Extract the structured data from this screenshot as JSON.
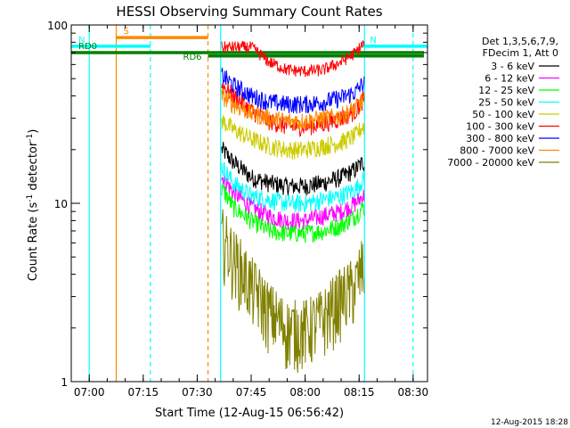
{
  "chart_data": {
    "type": "line",
    "title": "HESSI Observing Summary Count Rates",
    "xlabel": "Start Time (12-Aug-15 06:56:42)",
    "ylabel_main": "Count Rate (s",
    "ylabel_sup1": "-1",
    "ylabel_mid": " detector",
    "ylabel_sup2": "-1",
    "ylabel_end": ")",
    "timestamp": "12-Aug-2015 18:28",
    "x_unit": "minutes",
    "x_range": [
      415,
      514
    ],
    "y_scale": "log",
    "y_range": [
      1,
      100
    ],
    "x_ticks": [
      {
        "v": 420,
        "label": "07:00"
      },
      {
        "v": 435,
        "label": "07:15"
      },
      {
        "v": 450,
        "label": "07:30"
      },
      {
        "v": 465,
        "label": "07:45"
      },
      {
        "v": 480,
        "label": "08:00"
      },
      {
        "v": 495,
        "label": "08:15"
      },
      {
        "v": 510,
        "label": "08:30"
      }
    ],
    "x_minor_step": 5,
    "y_ticks": [
      {
        "v": 1,
        "label": "1"
      },
      {
        "v": 10,
        "label": "10"
      },
      {
        "v": 100,
        "label": "100"
      }
    ],
    "legend": {
      "header": [
        "Det 1,3,5,6,7,9,",
        "FDecim 1, Att 0"
      ],
      "placement": "right"
    },
    "series": [
      {
        "name": "3 - 6 keV",
        "color": "#000000"
      },
      {
        "name": "6 - 12 keV",
        "color": "#ff00ff"
      },
      {
        "name": "12 - 25 keV",
        "color": "#00ff00"
      },
      {
        "name": "25 - 50 keV",
        "color": "#00ffff"
      },
      {
        "name": "50 - 100 keV",
        "color": "#cccc00"
      },
      {
        "name": "100 - 300 keV",
        "color": "#ff0000"
      },
      {
        "name": "300 - 800 keV",
        "color": "#0000ff"
      },
      {
        "name": "800 - 7000 keV",
        "color": "#ff8800"
      },
      {
        "name": "7000 - 20000 keV",
        "color": "#808000"
      }
    ],
    "series_values": {
      "day_start": 456.5,
      "day_end": 496.5,
      "points": [
        {
          "series": "3 - 6 keV",
          "x": [
            457,
            460,
            465,
            470,
            475,
            480,
            485,
            490,
            494,
            496
          ],
          "y": [
            20,
            17,
            14,
            13,
            12.5,
            12.5,
            13,
            14,
            15.5,
            17
          ]
        },
        {
          "series": "6 - 12 keV",
          "x": [
            457,
            460,
            465,
            470,
            475,
            480,
            485,
            490,
            494,
            496
          ],
          "y": [
            14,
            11.5,
            9.5,
            8.5,
            8,
            8,
            8.5,
            9,
            10,
            11
          ]
        },
        {
          "series": "12 - 25 keV",
          "x": [
            457,
            460,
            465,
            470,
            475,
            480,
            485,
            490,
            494,
            496
          ],
          "y": [
            12,
            9.5,
            8,
            7,
            6.8,
            6.8,
            7,
            7.5,
            8.5,
            9.5
          ]
        },
        {
          "series": "25 - 50 keV",
          "x": [
            457,
            460,
            465,
            470,
            475,
            480,
            485,
            490,
            494,
            496
          ],
          "y": [
            16,
            13,
            11,
            10.5,
            10,
            10,
            10.5,
            11,
            12,
            13.5
          ]
        },
        {
          "series": "50 - 100 keV",
          "x": [
            457,
            460,
            465,
            470,
            475,
            480,
            485,
            490,
            494,
            496
          ],
          "y": [
            29,
            26,
            23,
            21,
            20,
            20,
            21,
            22,
            24,
            27
          ]
        },
        {
          "series": "100 - 300 keV",
          "x": [
            457,
            460,
            465,
            470,
            475,
            480,
            485,
            490,
            494,
            496
          ],
          "y": [
            46,
            40,
            33,
            29,
            27,
            27,
            28,
            30,
            33,
            38
          ]
        },
        {
          "series": "300 - 800 keV",
          "x": [
            457,
            460,
            465,
            470,
            475,
            480,
            485,
            490,
            494,
            496
          ],
          "y": [
            52,
            46,
            40,
            37,
            36,
            36,
            37,
            39,
            42,
            47
          ]
        },
        {
          "series": "800 - 7000 keV",
          "x": [
            457,
            460,
            465,
            470,
            475,
            480,
            485,
            490,
            494,
            496
          ],
          "y": [
            40,
            36,
            32,
            30,
            29,
            29,
            30,
            31,
            34,
            38
          ]
        },
        {
          "series": "7000 - 20000 keV",
          "x": [
            457,
            460,
            465,
            470,
            475,
            480,
            485,
            490,
            494,
            496
          ],
          "y": [
            6.5,
            5,
            3.5,
            2.5,
            2,
            2,
            2.3,
            3,
            3.5,
            4.5
          ]
        }
      ],
      "saa_red": {
        "x": [
          465,
          470,
          475,
          480,
          485,
          490,
          494,
          496
        ],
        "y": [
          75,
          62,
          56,
          55,
          56,
          62,
          70,
          78
        ]
      }
    },
    "annotations": [
      {
        "label": "S",
        "color": "#ff8800",
        "x_start": 427.5,
        "x_end": 453,
        "y": 85
      },
      {
        "label": "N",
        "color": "#00ffff",
        "x_start": 415,
        "x_end": 437,
        "y": 76
      },
      {
        "label": "RD0",
        "color": "#008000",
        "x_start": 415,
        "x_end": 513,
        "y": 70
      },
      {
        "label": "RD6",
        "color": "#008000",
        "x_start": 453,
        "x_end": 513,
        "y": 67
      },
      {
        "label": "N",
        "color": "#00ffff",
        "x_start": 496,
        "x_end": 514,
        "y": 76
      }
    ],
    "vlines": [
      {
        "x": 420,
        "color": "#00ffff",
        "style": "solid"
      },
      {
        "x": 427.5,
        "color": "#ff8800",
        "style": "solid"
      },
      {
        "x": 437,
        "color": "#00ffff",
        "style": "dashed"
      },
      {
        "x": 453,
        "color": "#ff8800",
        "style": "dashed"
      },
      {
        "x": 456.5,
        "color": "#00ffff",
        "style": "solid"
      },
      {
        "x": 496.5,
        "color": "#00ffff",
        "style": "solid"
      },
      {
        "x": 510,
        "color": "#00ffff",
        "style": "dashed"
      }
    ],
    "grid": false
  }
}
